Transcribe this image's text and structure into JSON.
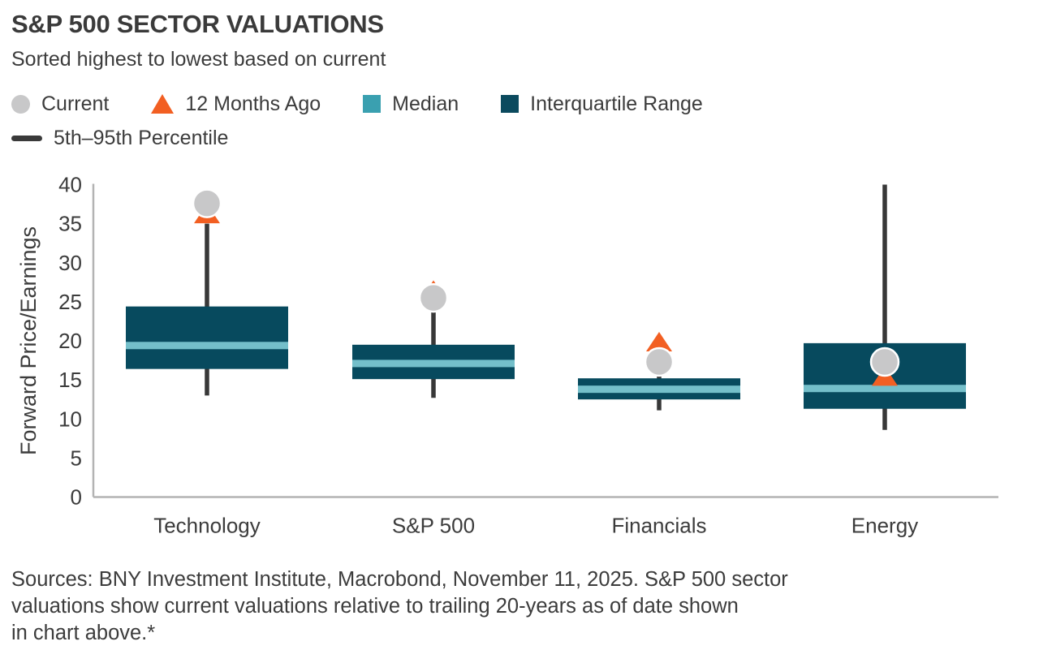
{
  "chart_data": {
    "type": "boxplot",
    "title": "S&P 500 SECTOR VALUATIONS",
    "subtitle": "Sorted highest to lowest based on current",
    "ylabel": "Forward Price/Earnings",
    "ylim": [
      0,
      40
    ],
    "yticks": [
      0,
      5,
      10,
      15,
      20,
      25,
      30,
      35,
      40
    ],
    "grid": false,
    "legend_position": "top",
    "categories": [
      "Technology",
      "S&P 500",
      "Financials",
      "Energy"
    ],
    "series": [
      {
        "name": "Technology",
        "p5": 13.0,
        "q1": 16.4,
        "median": 19.4,
        "q3": 24.4,
        "p95": 35.0,
        "current": 37.6,
        "twelve_months_ago": 36.3
      },
      {
        "name": "S&P 500",
        "p5": 12.7,
        "q1": 15.1,
        "median": 17.1,
        "q3": 19.5,
        "p95": 24.0,
        "current": 25.5,
        "twelve_months_ago": 26.5
      },
      {
        "name": "Financials",
        "p5": 11.1,
        "q1": 12.5,
        "median": 13.8,
        "q3": 15.2,
        "p95": 16.5,
        "current": 17.3,
        "twelve_months_ago": 19.9
      },
      {
        "name": "Energy",
        "p5": 8.6,
        "q1": 11.3,
        "median": 13.9,
        "q3": 19.7,
        "p95": 40.0,
        "current": 17.3,
        "twelve_months_ago": 15.5
      }
    ],
    "legend": [
      {
        "label": "Current",
        "marker": "circle-icon",
        "color": "#c8c8c9"
      },
      {
        "label": "12 Months Ago",
        "marker": "triangle-icon",
        "color": "#f25f22"
      },
      {
        "label": "Median",
        "marker": "square-icon",
        "color": "#3aa0b0"
      },
      {
        "label": "Interquartile Range",
        "marker": "square-icon",
        "color": "#0b4a5e"
      },
      {
        "label": "5th–95th Percentile",
        "marker": "line-icon",
        "color": "#3a3a3a"
      }
    ],
    "colors": {
      "iqr_box": "#074a5e",
      "median_stripe": "#74bfca",
      "whisker": "#383838",
      "current_marker": "#c8c8c9",
      "current_marker_stroke": "#ffffff",
      "twelve_months_ago_marker": "#f25f22",
      "axis_line": "#b3b3b3",
      "text": "#3c3c3c"
    }
  },
  "footer": {
    "lines": [
      "Sources: BNY Investment Institute, Macrobond, November 11, 2025. S&P 500 sector",
      "valuations show current valuations relative to trailing 20-years as of date shown",
      "in chart above.*"
    ]
  }
}
